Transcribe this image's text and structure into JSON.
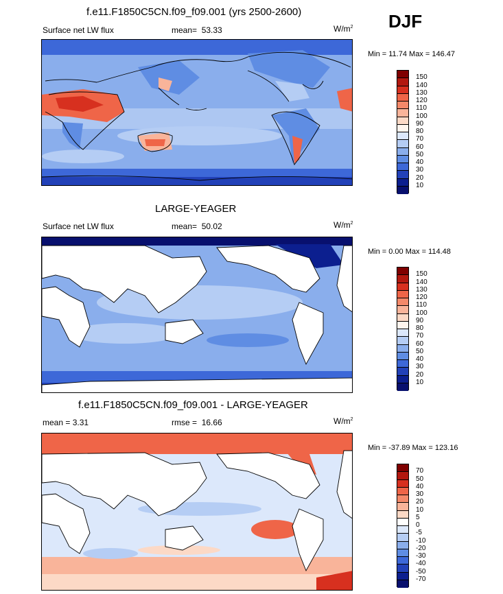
{
  "season": "DJF",
  "unit_base": "W/m",
  "unit_exp": "2",
  "panels": [
    {
      "title": "f.e11.F1850C5CN.f09_f09.001 (yrs 2500-2600)",
      "left_label": "Surface net LW flux",
      "stat_label": "mean=",
      "stat_value": "53.33",
      "minmax": "Min =  11.74 Max = 146.47",
      "levels": [
        "150",
        "140",
        "130",
        "120",
        "110",
        "100",
        "90",
        "80",
        "70",
        "60",
        "50",
        "40",
        "30",
        "20",
        "10"
      ]
    },
    {
      "title": "LARGE-YEAGER",
      "left_label": "Surface net LW flux",
      "stat_label": "mean=",
      "stat_value": "50.02",
      "minmax": "Min =   0.00 Max = 114.48",
      "levels": [
        "150",
        "140",
        "130",
        "120",
        "110",
        "100",
        "90",
        "80",
        "70",
        "60",
        "50",
        "40",
        "30",
        "20",
        "10"
      ]
    },
    {
      "title": "f.e11.F1850C5CN.f09_f09.001 - LARGE-YEAGER",
      "left_label": "mean =   3.31",
      "stat_label": "rmse =",
      "stat_value": "16.66",
      "minmax": "Min = -37.89 Max = 123.16",
      "levels": [
        "70",
        "50",
        "40",
        "30",
        "20",
        "10",
        "5",
        "0",
        "-5",
        "-10",
        "-20",
        "-30",
        "-40",
        "-50",
        "-70"
      ]
    }
  ],
  "colors": {
    "abs_scale": [
      "#7f0000",
      "#b2180f",
      "#d7301f",
      "#ef6548",
      "#f4896a",
      "#f9b49a",
      "#fcd9c6",
      "#fff5ee",
      "#dce8fb",
      "#b5cdf4",
      "#8aaeec",
      "#5f8de3",
      "#3d68d8",
      "#2241b8",
      "#0c1f8f",
      "#08106e"
    ],
    "diff_scale": [
      "#7f0000",
      "#b2180f",
      "#d7301f",
      "#ef6548",
      "#f4896a",
      "#f9b49a",
      "#fcd9c6",
      "#ffffff",
      "#dce8fb",
      "#b5cdf4",
      "#8aaeec",
      "#5f8de3",
      "#3d68d8",
      "#2241b8",
      "#0c1f8f",
      "#08106e"
    ]
  },
  "chart_data": [
    {
      "type": "heatmap",
      "title": "f.e11.F1850C5CN.f09_f09.001 (yrs 2500-2600)",
      "variable": "Surface net LW flux",
      "units": "W/m2",
      "season": "DJF",
      "mean": 53.33,
      "min": 11.74,
      "max": 146.47,
      "contour_levels": [
        10,
        20,
        30,
        40,
        50,
        60,
        70,
        80,
        90,
        100,
        110,
        120,
        130,
        140,
        150
      ]
    },
    {
      "type": "heatmap",
      "title": "LARGE-YEAGER",
      "variable": "Surface net LW flux",
      "units": "W/m2",
      "mean": 50.02,
      "min": 0.0,
      "max": 114.48,
      "contour_levels": [
        10,
        20,
        30,
        40,
        50,
        60,
        70,
        80,
        90,
        100,
        110,
        120,
        130,
        140,
        150
      ]
    },
    {
      "type": "heatmap",
      "title": "f.e11.F1850C5CN.f09_f09.001 - LARGE-YEAGER",
      "units": "W/m2",
      "mean": 3.31,
      "rmse": 16.66,
      "min": -37.89,
      "max": 123.16,
      "contour_levels": [
        -70,
        -50,
        -40,
        -30,
        -20,
        -10,
        -5,
        0,
        5,
        10,
        20,
        30,
        40,
        50,
        70
      ]
    }
  ]
}
